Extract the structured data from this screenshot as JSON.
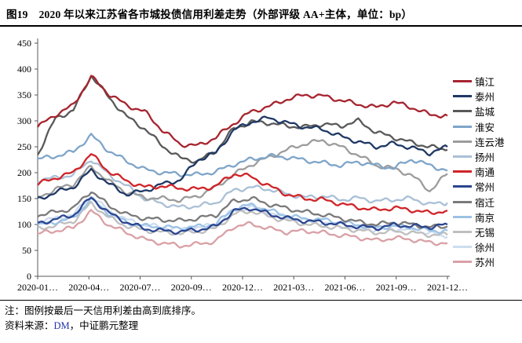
{
  "title": {
    "tag": "图19",
    "text": "2020 年以来江苏省各市城投债信用利差走势（外部评级 AA+主体，单位：bp）"
  },
  "notes": {
    "note": "注：图例按最后一天信用利差由高到底排序。",
    "source_prefix": "资料来源：",
    "source_link": "DM",
    "source_suffix": "，中证鹏元整理",
    "source_link_color": "#2233AA"
  },
  "chart_data": {
    "type": "line",
    "title": "2020 年以来江苏省各市城投债信用利差走势（外部评级 AA+主体，单位：bp）",
    "unit": "bp",
    "ylim": [
      0,
      450
    ],
    "y_step": 50,
    "grid": false,
    "legend_position": "right",
    "x_tick_labels": [
      "2020-01…",
      "2020-04…",
      "2020-07…",
      "2020-09…",
      "2020-12…",
      "2021-03…",
      "2021-06…",
      "2021-09…",
      "2021-12…"
    ],
    "months": [
      "2020-01",
      "2020-02",
      "2020-03",
      "2020-04",
      "2020-05",
      "2020-06",
      "2020-07",
      "2020-08",
      "2020-09",
      "2020-10",
      "2020-11",
      "2020-12",
      "2021-01",
      "2021-02",
      "2021-03",
      "2021-04",
      "2021-05",
      "2021-06",
      "2021-07",
      "2021-08",
      "2021-09",
      "2021-10",
      "2021-11",
      "2021-12"
    ],
    "series": [
      {
        "name": "镇江",
        "color": "#A6242F",
        "values": [
          288,
          312,
          330,
          385,
          352,
          330,
          318,
          282,
          255,
          252,
          268,
          295,
          318,
          328,
          342,
          350,
          348,
          340,
          332,
          326,
          336,
          326,
          312,
          310
        ]
      },
      {
        "name": "泰州",
        "color": "#1F3864",
        "values": [
          148,
          162,
          172,
          205,
          178,
          158,
          165,
          178,
          186,
          225,
          238,
          282,
          298,
          306,
          296,
          288,
          284,
          270,
          260,
          250,
          256,
          248,
          238,
          250
        ]
      },
      {
        "name": "盐城",
        "color": "#595959",
        "values": [
          235,
          305,
          320,
          388,
          345,
          308,
          285,
          252,
          228,
          222,
          242,
          285,
          298,
          296,
          290,
          288,
          294,
          290,
          300,
          278,
          268,
          258,
          250,
          244
        ]
      },
      {
        "name": "淮安",
        "color": "#7FA5C9",
        "values": [
          226,
          232,
          240,
          272,
          242,
          222,
          206,
          200,
          197,
          196,
          202,
          216,
          226,
          232,
          230,
          224,
          219,
          214,
          221,
          214,
          209,
          226,
          214,
          204
        ]
      },
      {
        "name": "连云港",
        "color": "#9C9C9C",
        "values": [
          152,
          168,
          178,
          212,
          183,
          162,
          152,
          150,
          147,
          155,
          172,
          196,
          216,
          230,
          244,
          256,
          262,
          250,
          234,
          214,
          208,
          195,
          165,
          198
        ]
      },
      {
        "name": "扬州",
        "color": "#A9C0D6",
        "values": [
          186,
          190,
          196,
          226,
          196,
          174,
          150,
          140,
          133,
          136,
          142,
          166,
          172,
          168,
          159,
          152,
          155,
          148,
          151,
          145,
          148,
          150,
          139,
          142
        ]
      },
      {
        "name": "南通",
        "color": "#D02428",
        "values": [
          178,
          190,
          200,
          236,
          202,
          184,
          172,
          174,
          170,
          168,
          174,
          198,
          192,
          174,
          158,
          150,
          148,
          140,
          133,
          128,
          132,
          128,
          122,
          127
        ]
      },
      {
        "name": "常州",
        "color": "#2B4590",
        "values": [
          102,
          110,
          118,
          152,
          122,
          104,
          92,
          88,
          86,
          90,
          96,
          126,
          132,
          120,
          112,
          107,
          104,
          100,
          96,
          93,
          99,
          97,
          95,
          100
        ]
      },
      {
        "name": "宿迁",
        "color": "#7A7A7A",
        "values": [
          118,
          124,
          131,
          165,
          136,
          119,
          112,
          109,
          107,
          112,
          118,
          145,
          150,
          139,
          131,
          124,
          119,
          112,
          105,
          100,
          104,
          100,
          95,
          96
        ]
      },
      {
        "name": "南京",
        "color": "#9CC2E5",
        "values": [
          98,
          105,
          112,
          150,
          121,
          104,
          97,
          95,
          93,
          96,
          101,
          130,
          138,
          127,
          117,
          111,
          109,
          104,
          99,
          94,
          97,
          94,
          88,
          88
        ]
      },
      {
        "name": "无锡",
        "color": "#BFBFBF",
        "values": [
          92,
          98,
          106,
          141,
          113,
          97,
          89,
          85,
          83,
          86,
          92,
          120,
          126,
          115,
          107,
          101,
          97,
          93,
          89,
          84,
          87,
          84,
          80,
          80
        ]
      },
      {
        "name": "徐州",
        "color": "#CDDDEF",
        "values": [
          105,
          112,
          119,
          155,
          126,
          109,
          99,
          95,
          91,
          94,
          100,
          128,
          134,
          123,
          113,
          107,
          103,
          97,
          93,
          89,
          91,
          89,
          83,
          76
        ]
      },
      {
        "name": "苏州",
        "color": "#D9A0A6",
        "values": [
          82,
          88,
          93,
          126,
          99,
          84,
          71,
          64,
          59,
          62,
          68,
          96,
          101,
          92,
          85,
          88,
          84,
          79,
          75,
          69,
          74,
          71,
          65,
          64
        ]
      }
    ]
  }
}
